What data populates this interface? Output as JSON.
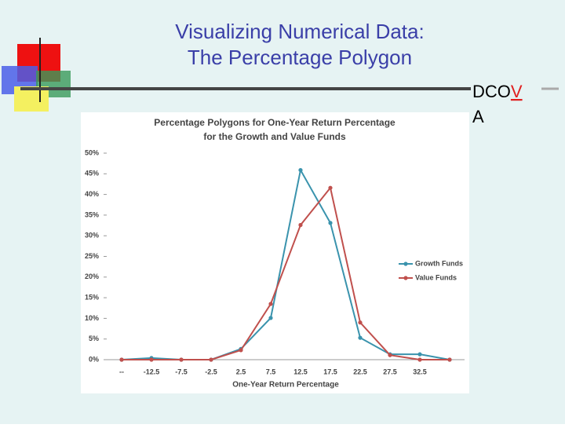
{
  "slide": {
    "title_lines": [
      "Visualizing Numerical Data:",
      "The Percentage Polygon"
    ],
    "tag_parts": [
      "DCO",
      "V",
      "A"
    ]
  },
  "chart_data": {
    "type": "line",
    "title_lines": [
      "Percentage Polygons for One-Year Return Percentage",
      "for the Growth and Value Funds"
    ],
    "x_label": "One-Year Return Percentage",
    "categories": [
      "--",
      "-12.5",
      "-7.5",
      "-2.5",
      "2.5",
      "7.5",
      "12.5",
      "17.5",
      "22.5",
      "27.5",
      "32.5",
      null
    ],
    "series": [
      {
        "name": "Growth Funds",
        "color": "#3a93ad",
        "values": [
          0,
          0.4,
          0,
          0,
          2.6,
          10.1,
          45.9,
          33.1,
          5.3,
          1.3,
          1.3,
          0
        ]
      },
      {
        "name": "Value Funds",
        "color": "#c0504d",
        "values": [
          0,
          0,
          0,
          0,
          2.3,
          13.5,
          32.6,
          41.6,
          9.0,
          1.1,
          0,
          0
        ]
      }
    ],
    "ylim": [
      0,
      50
    ],
    "yticks": [
      {
        "value": 0,
        "label": "0%"
      },
      {
        "value": 5,
        "label": "5%"
      },
      {
        "value": 10,
        "label": "10%"
      },
      {
        "value": 15,
        "label": "15%"
      },
      {
        "value": 20,
        "label": "20%"
      },
      {
        "value": 25,
        "label": "25%"
      },
      {
        "value": 30,
        "label": "30%"
      },
      {
        "value": 35,
        "label": "35%"
      },
      {
        "value": 40,
        "label": "40%"
      },
      {
        "value": 45,
        "label": "45%"
      },
      {
        "value": 50,
        "label": "50%"
      }
    ],
    "grid": false,
    "legend": "right"
  }
}
